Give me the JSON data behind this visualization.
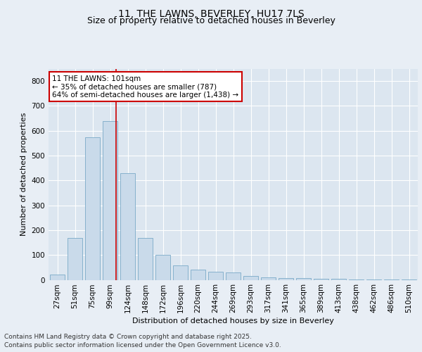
{
  "title": "11, THE LAWNS, BEVERLEY, HU17 7LS",
  "subtitle": "Size of property relative to detached houses in Beverley",
  "xlabel": "Distribution of detached houses by size in Beverley",
  "ylabel": "Number of detached properties",
  "categories": [
    "27sqm",
    "51sqm",
    "75sqm",
    "99sqm",
    "124sqm",
    "148sqm",
    "172sqm",
    "196sqm",
    "220sqm",
    "244sqm",
    "269sqm",
    "293sqm",
    "317sqm",
    "341sqm",
    "365sqm",
    "389sqm",
    "413sqm",
    "438sqm",
    "462sqm",
    "486sqm",
    "510sqm"
  ],
  "values": [
    20,
    168,
    575,
    640,
    428,
    170,
    102,
    57,
    42,
    33,
    30,
    15,
    10,
    8,
    6,
    5,
    3,
    1,
    1,
    1,
    1
  ],
  "bar_color": "#c9daea",
  "bar_edge_color": "#7aaac8",
  "red_line_index": 3,
  "annotation_text": "11 THE LAWNS: 101sqm\n← 35% of detached houses are smaller (787)\n64% of semi-detached houses are larger (1,438) →",
  "annotation_box_color": "#ffffff",
  "annotation_box_edge_color": "#cc0000",
  "red_line_color": "#cc0000",
  "background_color": "#e8eef5",
  "plot_background_color": "#dce6f0",
  "grid_color": "#ffffff",
  "ylim": [
    0,
    850
  ],
  "yticks": [
    0,
    100,
    200,
    300,
    400,
    500,
    600,
    700,
    800
  ],
  "footer_text": "Contains HM Land Registry data © Crown copyright and database right 2025.\nContains public sector information licensed under the Open Government Licence v3.0.",
  "title_fontsize": 10,
  "subtitle_fontsize": 9,
  "axis_label_fontsize": 8,
  "ylabel_fontsize": 8,
  "tick_fontsize": 7.5,
  "annotation_fontsize": 7.5,
  "footer_fontsize": 6.5
}
